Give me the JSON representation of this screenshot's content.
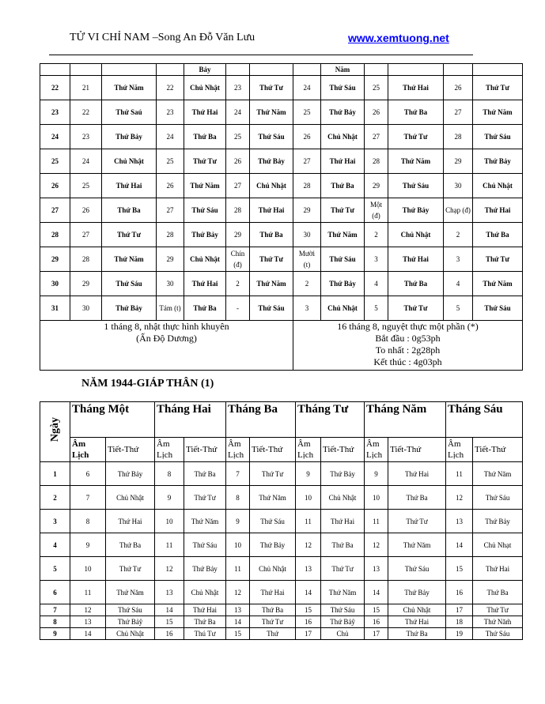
{
  "header": {
    "title": "TỬ VI CHỈ NAM –Song An Đỗ Văn Lưu",
    "site": "www.xemtuong.net"
  },
  "table1": {
    "rows": [
      [
        "",
        "",
        "",
        "",
        "Bảy",
        "",
        "",
        "",
        "Năm",
        "",
        "",
        "",
        ""
      ],
      [
        "22",
        "21",
        "Thứ Năm",
        "22",
        "Chủ Nhật",
        "23",
        "Thứ Tư",
        "24",
        "Thứ Sáu",
        "25",
        "Thứ Hai",
        "26",
        "Thứ Tư"
      ],
      [
        "23",
        "22",
        "Thứ Saú",
        "23",
        "Thứ Hai",
        "24",
        "Thứ Năm",
        "25",
        "Thứ Bảy",
        "26",
        "Thứ Ba",
        "27",
        "Thứ Năm"
      ],
      [
        "24",
        "23",
        "Thứ Bảy",
        "24",
        "Thứ Ba",
        "25",
        "Thứ Sáu",
        "26",
        "Chủ Nhật",
        "27",
        "Thứ Tư",
        "28",
        "Thứ Sáu"
      ],
      [
        "25",
        "24",
        "Chủ Nhật",
        "25",
        "Thứ Tư",
        "26",
        "Thứ Bảy",
        "27",
        "Thứ Hai",
        "28",
        "Thứ Năm",
        "29",
        "Thứ Bảy"
      ],
      [
        "26",
        "25",
        "Thứ Hai",
        "26",
        "Thứ Năm",
        "27",
        "Chủ Nhật",
        "28",
        "Thứ Ba",
        "29",
        "Thứ Sáu",
        "30",
        "Chủ Nhật"
      ],
      [
        "27",
        "26",
        "Thứ Ba",
        "27",
        "Thứ Sáu",
        "28",
        "Thứ Hai",
        "29",
        "Thứ Tư",
        "Một (đ)",
        "Thứ Bảy",
        "Chạp (đ)",
        "Thứ Hai"
      ],
      [
        "28",
        "27",
        "Thứ Tư",
        "28",
        "Thứ Bảy",
        "29",
        "Thứ Ba",
        "30",
        "Thứ Năm",
        "2",
        "Chủ Nhật",
        "2",
        "Thứ Ba"
      ],
      [
        "29",
        "28",
        "Thứ Năm",
        "29",
        "Chủ Nhật",
        "Chín (đ)",
        "Thứ Tư",
        "Mười (t)",
        "Thứ Sáu",
        "3",
        "Thứ Hai",
        "3",
        "Thứ Tư"
      ],
      [
        "30",
        "29",
        "Thứ Sáu",
        "30",
        "Thứ Hai",
        "2",
        "Thứ Năm",
        "2",
        "Thứ Bảy",
        "4",
        "Thứ Ba",
        "4",
        "Thứ Năm"
      ],
      [
        "31",
        "30",
        "Thứ Bảy",
        "Tám (t)",
        "Thứ Ba",
        "-",
        "Thứ Sáu",
        "3",
        "Chủ Nhật",
        "5",
        "Thứ Tư",
        "5",
        "Thứ Sáu"
      ]
    ],
    "note_left": [
      "1 tháng 8, nhật thực hình khuyên",
      "(Ấn Độ Dương)"
    ],
    "note_right": [
      "16 tháng 8, nguyệt thực một phần (*)",
      "Bắt đầu : 0g53ph",
      "To nhất : 2g28ph",
      "Kết thúc : 4g03ph"
    ]
  },
  "section_title": "NĂM 1944-GIÁP THÂN (1)",
  "table2": {
    "day_header": "Ngày",
    "months": [
      "Tháng Một",
      "Tháng Hai",
      "Tháng Ba",
      "Tháng Tư",
      "Tháng Năm",
      "Tháng Sáu"
    ],
    "subheaders": [
      [
        "Âm Lịch",
        "Tiết-Thứ"
      ],
      [
        "Âm Lịch",
        "Tiết-Thứ"
      ],
      [
        "Âm Lịch",
        "Tiết-Thứ"
      ],
      [
        "Âm Lịch",
        "Tiết-Thứ"
      ],
      [
        "Âm Lịch",
        "Tiết-Thứ"
      ],
      [
        "Âm Lịch",
        "Tiết-Thứ"
      ]
    ],
    "rows": [
      [
        "1",
        "6",
        "Thứ Bảy",
        "8",
        "Thứ Ba",
        "7",
        "Thứ Tư",
        "9",
        "Thứ Bảy",
        "9",
        "Thứ Hai",
        "11",
        "Thứ Năm"
      ],
      [
        "2",
        "7",
        "Chủ Nhật",
        "9",
        "Thứ Tư",
        "8",
        "Thứ Năm",
        "10",
        "Chủ Nhật",
        "10",
        "Thứ Ba",
        "12",
        "Thứ Sáu"
      ],
      [
        "3",
        "8",
        "Thứ Hai",
        "10",
        "Thứ Năm",
        "9",
        "Thứ Sáu",
        "11",
        "Thứ Hai",
        "11",
        "Thứ Tư",
        "13",
        "Thứ Bảy"
      ],
      [
        "4",
        "9",
        "Thứ Ba",
        "11",
        "Thứ Sáu",
        "10",
        "Thứ Bảy",
        "12",
        "Thứ Ba",
        "12",
        "Thứ Năm",
        "14",
        "Chủ Nhạt"
      ],
      [
        "5",
        "10",
        "Thứ Tư",
        "12",
        "Thứ Bảy",
        "11",
        "Chủ Nhật",
        "13",
        "Thứ Tư",
        "13",
        "Thứ Sáu",
        "15",
        "Thứ Hai"
      ],
      [
        "6",
        "11",
        "Thứ Năm",
        "13",
        "Chủ Nhật",
        "12",
        "Thứ Hai",
        "14",
        "Thứ Năm",
        "14",
        "Thứ Bảy",
        "16",
        "Thứ Ba"
      ],
      [
        "7",
        "12",
        "Thứ Sáu",
        "14",
        "Thứ Hai",
        "13",
        "Thứ Ba",
        "15",
        "Thứ Sáu",
        "15",
        "Chủ Nhật",
        "17",
        "Thứ Tư"
      ],
      [
        "8",
        "13",
        "Thứ Bảŷ",
        "15",
        "Thứ Ba",
        "14",
        "Thứ Tư",
        "16",
        "Thứ Bảŷ",
        "16",
        "Thứ Hai",
        "18",
        "Thứ Năm̃"
      ],
      [
        "9",
        "14",
        "Chủ Nhật",
        "16",
        "Thú Tư",
        "15",
        "Thứ",
        "17",
        "Chủ",
        "17",
        "Thứ Ba",
        "19",
        "Thứ Sáu"
      ]
    ]
  }
}
